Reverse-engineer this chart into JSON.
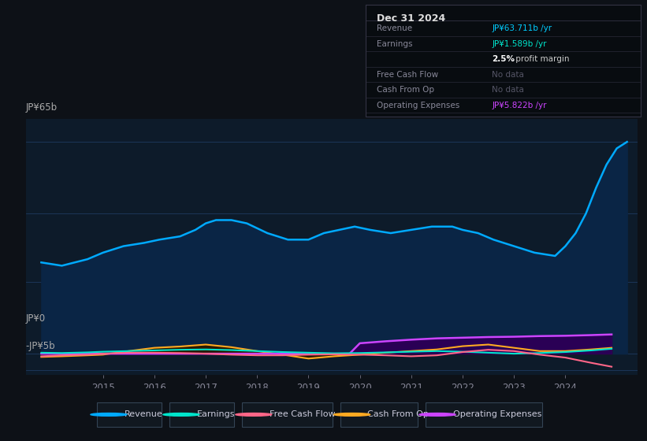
{
  "bg_color": "#0d1117",
  "plot_bg_color": "#0d1b2a",
  "grid_color": "#1e3a5f",
  "title_text": "Dec 31 2024",
  "info_box": {
    "bg_color": "#080c10",
    "border_color": "#333344",
    "title_color": "#dddddd",
    "label_color": "#888899",
    "rows": [
      {
        "label": "Revenue",
        "value": "JP¥63.711b /yr",
        "value_color": "#00ccff",
        "label_color": "#888899"
      },
      {
        "label": "Earnings",
        "value": "JP¥1.589b /yr",
        "value_color": "#00e5cc",
        "label_color": "#888899"
      },
      {
        "label": "",
        "value": "2.5% profit margin",
        "value_color": "#ffffff",
        "label_color": "#888899"
      },
      {
        "label": "Free Cash Flow",
        "value": "No data",
        "value_color": "#555566",
        "label_color": "#888899"
      },
      {
        "label": "Cash From Op",
        "value": "No data",
        "value_color": "#555566",
        "label_color": "#888899"
      },
      {
        "label": "Operating Expenses",
        "value": "JP¥5.822b /yr",
        "value_color": "#cc44ff",
        "label_color": "#888899"
      }
    ]
  },
  "ylabel_top": "JP¥65b",
  "ylabel_zero": "JP¥0",
  "ylabel_neg": "-JP¥5b",
  "ylim": [
    -6.5,
    72
  ],
  "xlim": [
    2013.5,
    2025.4
  ],
  "xticks": [
    2015,
    2016,
    2017,
    2018,
    2019,
    2020,
    2021,
    2022,
    2023,
    2024
  ],
  "gridlines_y": [
    65,
    43,
    22,
    0,
    -5
  ],
  "revenue": {
    "x": [
      2013.8,
      2014.2,
      2014.7,
      2015.0,
      2015.4,
      2015.8,
      2016.1,
      2016.5,
      2016.8,
      2017.0,
      2017.2,
      2017.5,
      2017.8,
      2018.2,
      2018.6,
      2019.0,
      2019.3,
      2019.6,
      2019.9,
      2020.2,
      2020.6,
      2021.0,
      2021.4,
      2021.8,
      2022.0,
      2022.3,
      2022.6,
      2023.0,
      2023.4,
      2023.8,
      2024.0,
      2024.2,
      2024.4,
      2024.6,
      2024.8,
      2025.0,
      2025.2
    ],
    "y": [
      28,
      27,
      29,
      31,
      33,
      34,
      35,
      36,
      38,
      40,
      41,
      41,
      40,
      37,
      35,
      35,
      37,
      38,
      39,
      38,
      37,
      38,
      39,
      39,
      38,
      37,
      35,
      33,
      31,
      30,
      33,
      37,
      43,
      51,
      58,
      63,
      65
    ],
    "color": "#00aaff",
    "fill_color": "#0a2545",
    "lw": 1.8
  },
  "earnings": {
    "x": [
      2013.8,
      2014.2,
      2014.7,
      2015.0,
      2015.5,
      2016.0,
      2016.5,
      2017.0,
      2017.5,
      2018.0,
      2018.5,
      2019.0,
      2019.5,
      2020.0,
      2020.5,
      2021.0,
      2021.5,
      2022.0,
      2022.5,
      2023.0,
      2023.5,
      2024.0,
      2024.5,
      2024.9
    ],
    "y": [
      0.3,
      0.2,
      0.4,
      0.6,
      0.8,
      1.0,
      1.2,
      1.3,
      1.1,
      0.8,
      0.5,
      0.3,
      0.1,
      0.2,
      0.4,
      0.6,
      0.8,
      0.6,
      0.3,
      0.0,
      0.2,
      0.5,
      1.0,
      1.5
    ],
    "color": "#00e5cc",
    "lw": 1.5
  },
  "free_cash_flow": {
    "x": [
      2013.8,
      2014.2,
      2014.7,
      2015.0,
      2015.5,
      2016.0,
      2016.5,
      2017.0,
      2017.5,
      2018.0,
      2018.5,
      2019.0,
      2019.5,
      2020.0,
      2020.5,
      2021.0,
      2021.5,
      2022.0,
      2022.5,
      2023.0,
      2023.5,
      2024.0,
      2024.5,
      2024.9
    ],
    "y": [
      -0.8,
      -0.5,
      -0.3,
      0.0,
      0.3,
      0.3,
      0.2,
      0.0,
      -0.3,
      -0.5,
      -0.5,
      -0.3,
      -0.2,
      -0.3,
      -0.5,
      -0.8,
      -0.5,
      0.5,
      1.2,
      0.8,
      -0.3,
      -1.2,
      -2.8,
      -4.0
    ],
    "color": "#ff6688",
    "lw": 1.5
  },
  "cash_from_op": {
    "x": [
      2013.8,
      2014.2,
      2014.7,
      2015.0,
      2015.5,
      2016.0,
      2016.5,
      2017.0,
      2017.5,
      2018.0,
      2018.5,
      2019.0,
      2019.5,
      2020.0,
      2020.5,
      2021.0,
      2021.5,
      2022.0,
      2022.5,
      2023.0,
      2023.5,
      2024.0,
      2024.5,
      2024.9
    ],
    "y": [
      -1.0,
      -0.8,
      -0.5,
      -0.3,
      0.8,
      1.8,
      2.2,
      2.8,
      2.0,
      0.8,
      -0.3,
      -1.5,
      -0.8,
      -0.3,
      0.3,
      0.8,
      1.3,
      2.3,
      2.8,
      1.8,
      0.8,
      0.8,
      1.3,
      1.8
    ],
    "color": "#ffaa22",
    "fill_color": "#2a1a00",
    "lw": 1.5
  },
  "operating_expenses": {
    "x": [
      2013.8,
      2014.2,
      2014.7,
      2015.0,
      2015.5,
      2016.0,
      2016.5,
      2017.0,
      2017.5,
      2018.0,
      2018.5,
      2019.0,
      2019.8,
      2020.0,
      2020.5,
      2021.0,
      2021.5,
      2022.0,
      2022.5,
      2023.0,
      2023.5,
      2024.0,
      2024.5,
      2024.9
    ],
    "y": [
      0.0,
      0.0,
      0.0,
      0.0,
      0.0,
      0.0,
      0.0,
      0.0,
      0.0,
      0.0,
      0.0,
      0.0,
      0.0,
      3.2,
      3.8,
      4.3,
      4.7,
      4.9,
      5.1,
      5.2,
      5.4,
      5.5,
      5.7,
      5.9
    ],
    "color": "#cc44ff",
    "fill_color": "#2a0055",
    "lw": 1.8
  },
  "legend": [
    {
      "label": "Revenue",
      "color": "#00aaff"
    },
    {
      "label": "Earnings",
      "color": "#00e5cc"
    },
    {
      "label": "Free Cash Flow",
      "color": "#ff6688"
    },
    {
      "label": "Cash From Op",
      "color": "#ffaa22"
    },
    {
      "label": "Operating Expenses",
      "color": "#cc44ff"
    }
  ]
}
